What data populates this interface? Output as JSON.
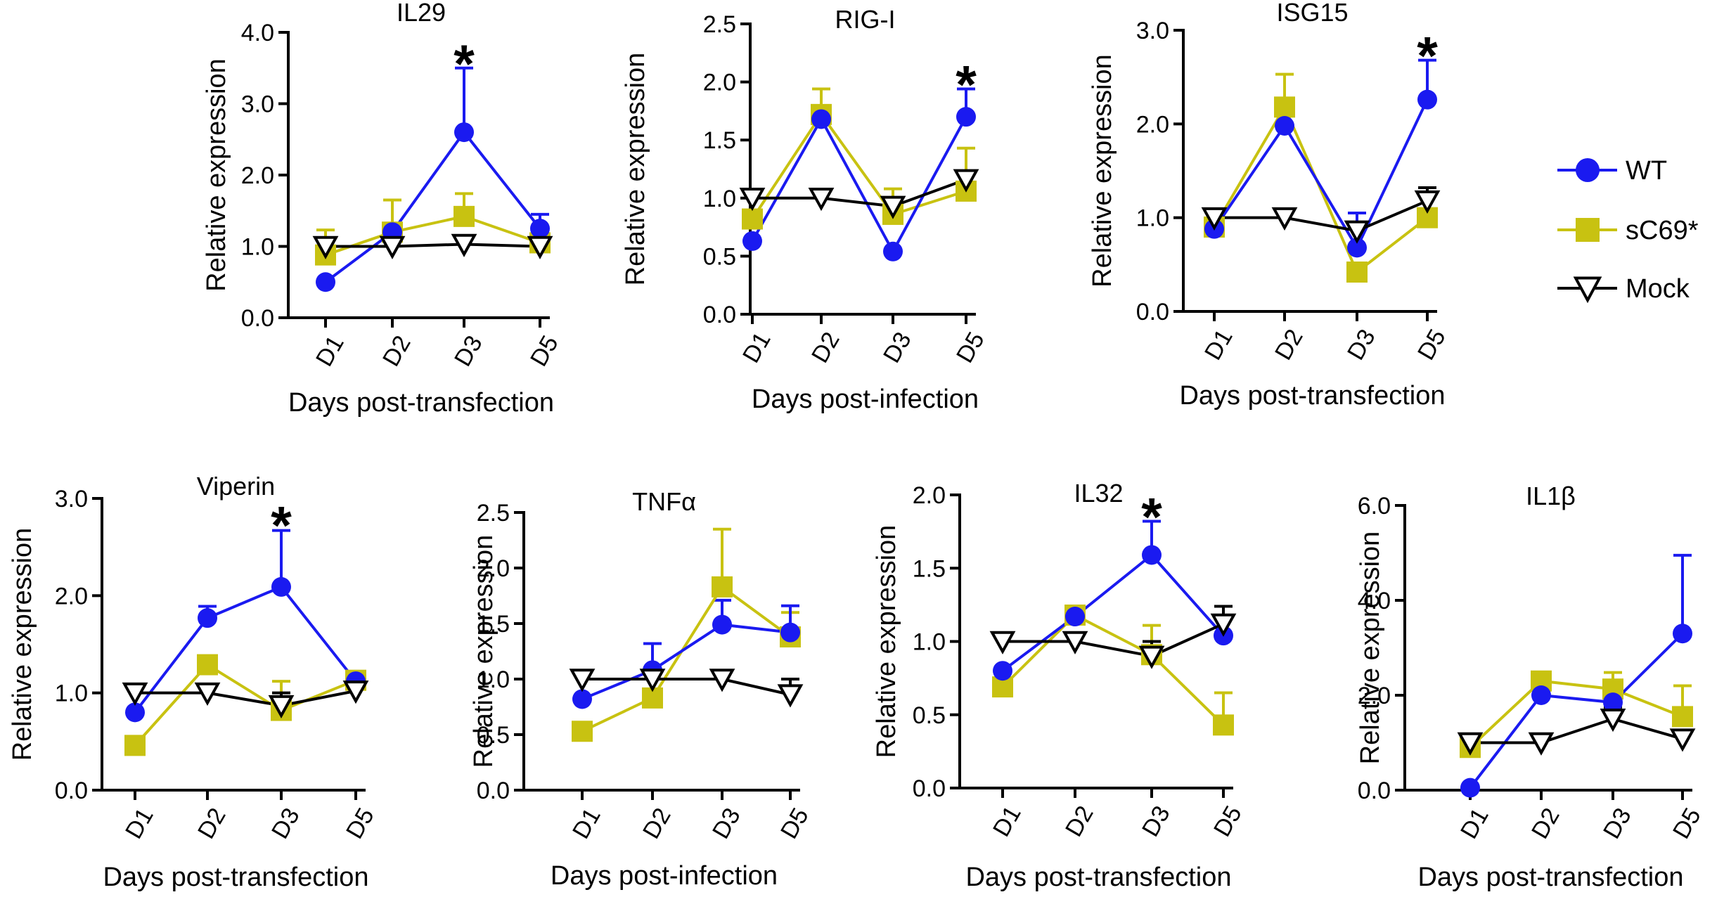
{
  "figure": {
    "legend": [
      {
        "name": "WT",
        "color": "#1a1af0",
        "marker": "circle"
      },
      {
        "name": "sC69*",
        "color": "#c8c211",
        "marker": "square"
      },
      {
        "name": "Mock",
        "color": "#000000",
        "marker": "triangle-down-open"
      }
    ]
  },
  "chart_data": [
    {
      "type": "line",
      "title": "IL29",
      "xlabel": "Days post-transfection",
      "ylabel": "Relative expression",
      "categories": [
        "D1",
        "D2",
        "D3",
        "D5"
      ],
      "ylim": [
        0,
        4
      ],
      "yticks": [
        "0.0",
        "1.0",
        "2.0",
        "3.0",
        "4.0"
      ],
      "yticks_values": [
        0,
        1,
        2,
        3,
        4
      ],
      "significance": [
        {
          "category": "D3",
          "label": "*",
          "at": 3.5
        }
      ],
      "series": [
        {
          "name": "WT",
          "values": [
            0.5,
            1.2,
            2.6,
            1.25
          ],
          "err": [
            0,
            0,
            0.9,
            0.2
          ]
        },
        {
          "name": "sC69*",
          "values": [
            0.88,
            1.2,
            1.42,
            1.05
          ],
          "err": [
            0.35,
            0.45,
            0.32,
            0
          ]
        },
        {
          "name": "Mock",
          "values": [
            1.0,
            1.0,
            1.03,
            1.0
          ],
          "err": [
            0,
            0,
            0,
            0
          ]
        }
      ]
    },
    {
      "type": "line",
      "title": "RIG-I",
      "xlabel": "Days post-infection",
      "ylabel": "Relative expression",
      "categories": [
        "D1",
        "D2",
        "D3",
        "D5"
      ],
      "ylim": [
        0,
        2.5
      ],
      "yticks": [
        "0.0",
        "0.5",
        "1.0",
        "1.5",
        "2.0",
        "2.5"
      ],
      "yticks_values": [
        0,
        0.5,
        1,
        1.5,
        2,
        2.5
      ],
      "significance": [
        {
          "category": "D5",
          "label": "*",
          "at": 1.94
        }
      ],
      "series": [
        {
          "name": "WT",
          "values": [
            0.63,
            1.68,
            0.54,
            1.7
          ],
          "err": [
            0,
            0,
            0,
            0.24
          ]
        },
        {
          "name": "sC69*",
          "values": [
            0.82,
            1.72,
            0.86,
            1.06
          ],
          "err": [
            0,
            0.22,
            0.22,
            0.37
          ]
        },
        {
          "name": "Mock",
          "values": [
            1.0,
            1.0,
            0.93,
            1.16
          ],
          "err": [
            0,
            0,
            0,
            0
          ]
        }
      ]
    },
    {
      "type": "line",
      "title": "ISG15",
      "xlabel": "Days post-transfection",
      "ylabel": "Relative expression",
      "categories": [
        "D1",
        "D2",
        "D3",
        "D5"
      ],
      "ylim": [
        0,
        3
      ],
      "yticks": [
        "0.0",
        "1.0",
        "2.0",
        "3.0"
      ],
      "yticks_values": [
        0,
        1,
        2,
        3
      ],
      "significance": [
        {
          "category": "D5",
          "label": "*",
          "at": 2.68
        }
      ],
      "series": [
        {
          "name": "WT",
          "values": [
            0.88,
            1.98,
            0.68,
            2.26
          ],
          "err": [
            0,
            0,
            0.37,
            0.42
          ]
        },
        {
          "name": "sC69*",
          "values": [
            0.9,
            2.18,
            0.42,
            1.0
          ],
          "err": [
            0,
            0.35,
            0,
            0
          ]
        },
        {
          "name": "Mock",
          "values": [
            1.0,
            1.0,
            0.86,
            1.18
          ],
          "err": [
            0,
            0,
            0,
            0.14
          ]
        }
      ]
    },
    {
      "type": "line",
      "title": "Viperin",
      "xlabel": "Days post-transfection",
      "ylabel": "Relative expression",
      "categories": [
        "D1",
        "D2",
        "D3",
        "D5"
      ],
      "ylim": [
        0,
        3
      ],
      "yticks": [
        "0.0",
        "1.0",
        "2.0",
        "3.0"
      ],
      "yticks_values": [
        0,
        1,
        2,
        3
      ],
      "significance": [
        {
          "category": "D3",
          "label": "*",
          "at": 2.68
        }
      ],
      "series": [
        {
          "name": "WT",
          "values": [
            0.8,
            1.77,
            2.09,
            1.12
          ],
          "err": [
            0,
            0.12,
            0.58,
            0
          ]
        },
        {
          "name": "sC69*",
          "values": [
            0.46,
            1.29,
            0.82,
            1.13
          ],
          "err": [
            0,
            0,
            0.3,
            0
          ]
        },
        {
          "name": "Mock",
          "values": [
            1.0,
            1.0,
            0.87,
            1.02
          ],
          "err": [
            0,
            0,
            0.13,
            0
          ]
        }
      ]
    },
    {
      "type": "line",
      "title": "TNFα",
      "xlabel": "Days post-infection",
      "ylabel": "Relative expression",
      "categories": [
        "D1",
        "D2",
        "D3",
        "D5"
      ],
      "ylim": [
        0,
        2.5
      ],
      "yticks": [
        "0.0",
        "0.5",
        "1.0",
        "1.5",
        "2.0",
        "2.5"
      ],
      "yticks_values": [
        0,
        0.5,
        1,
        1.5,
        2,
        2.5
      ],
      "significance": [],
      "series": [
        {
          "name": "WT",
          "values": [
            0.82,
            1.08,
            1.49,
            1.42
          ],
          "err": [
            0,
            0.24,
            0.22,
            0.24
          ]
        },
        {
          "name": "sC69*",
          "values": [
            0.53,
            0.83,
            1.83,
            1.38
          ],
          "err": [
            0,
            0,
            0.52,
            0.22
          ]
        },
        {
          "name": "Mock",
          "values": [
            1.0,
            1.0,
            1.0,
            0.86
          ],
          "err": [
            0,
            0,
            0,
            0.14
          ]
        }
      ]
    },
    {
      "type": "line",
      "title": "IL32",
      "xlabel": "Days post-transfection",
      "ylabel": "Relative expression",
      "categories": [
        "D1",
        "D2",
        "D3",
        "D5"
      ],
      "ylim": [
        0,
        2
      ],
      "yticks": [
        "0.0",
        "0.5",
        "1.0",
        "1.5",
        "2.0"
      ],
      "yticks_values": [
        0,
        0.5,
        1,
        1.5,
        2
      ],
      "significance": [
        {
          "category": "D3",
          "label": "*",
          "at": 1.82
        }
      ],
      "series": [
        {
          "name": "WT",
          "values": [
            0.8,
            1.17,
            1.59,
            1.04
          ],
          "err": [
            0,
            0,
            0.23,
            0
          ]
        },
        {
          "name": "sC69*",
          "values": [
            0.69,
            1.18,
            0.91,
            0.43
          ],
          "err": [
            0,
            0,
            0.2,
            0.22
          ]
        },
        {
          "name": "Mock",
          "values": [
            1.0,
            1.0,
            0.9,
            1.12
          ],
          "err": [
            0,
            0,
            0.1,
            0.12
          ]
        }
      ]
    },
    {
      "type": "line",
      "title": "IL1β",
      "xlabel": "Days post-transfection",
      "ylabel": "Relative expression",
      "categories": [
        "D1",
        "D2",
        "D3",
        "D5"
      ],
      "ylim": [
        0,
        6
      ],
      "yticks": [
        "0.0",
        "2.0",
        "4.0",
        "6.0"
      ],
      "yticks_values": [
        0,
        2,
        4,
        6
      ],
      "significance": [],
      "series": [
        {
          "name": "WT",
          "values": [
            0.05,
            2.0,
            1.85,
            3.3
          ],
          "err": [
            0,
            0,
            0.45,
            1.65
          ]
        },
        {
          "name": "sC69*",
          "values": [
            0.9,
            2.3,
            2.13,
            1.55
          ],
          "err": [
            0,
            0,
            0.35,
            0.65
          ]
        },
        {
          "name": "Mock",
          "values": [
            1.0,
            1.0,
            1.5,
            1.08
          ],
          "err": [
            0,
            0,
            0.25,
            0
          ]
        }
      ]
    }
  ]
}
